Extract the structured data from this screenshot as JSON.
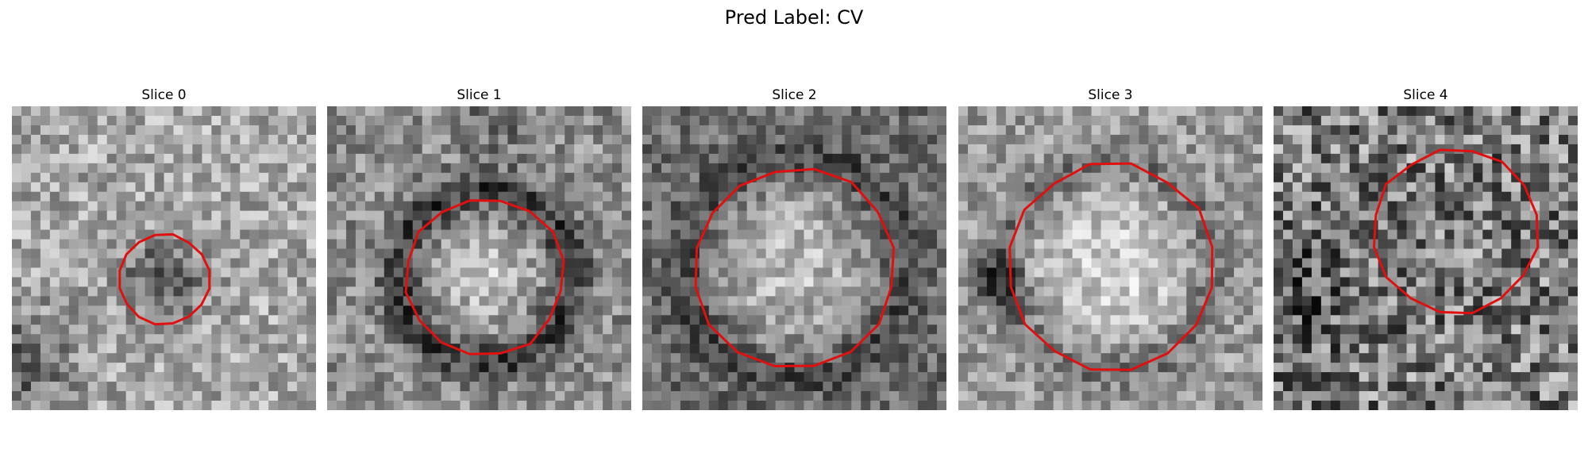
{
  "figure": {
    "title": "Pred Label: CV"
  },
  "contour_color": "#e01010",
  "panels": [
    {
      "label": "Slice 0",
      "pattern": "bright-bg-dark-spot",
      "contour_radius": 0.15,
      "contour_cx": 0.5,
      "contour_cy": 0.57
    },
    {
      "label": "Slice 1",
      "pattern": "dark-ring-bright-core",
      "contour_radius": 0.26,
      "contour_cx": 0.52,
      "contour_cy": 0.56
    },
    {
      "label": "Slice 2",
      "pattern": "bright-blob",
      "contour_radius": 0.33,
      "contour_cx": 0.5,
      "contour_cy": 0.53
    },
    {
      "label": "Slice 3",
      "pattern": "bright-blob-dark-left",
      "contour_radius": 0.34,
      "contour_cx": 0.5,
      "contour_cy": 0.53
    },
    {
      "label": "Slice 4",
      "pattern": "noisy",
      "contour_radius": 0.27,
      "contour_cx": 0.6,
      "contour_cy": 0.41
    }
  ]
}
